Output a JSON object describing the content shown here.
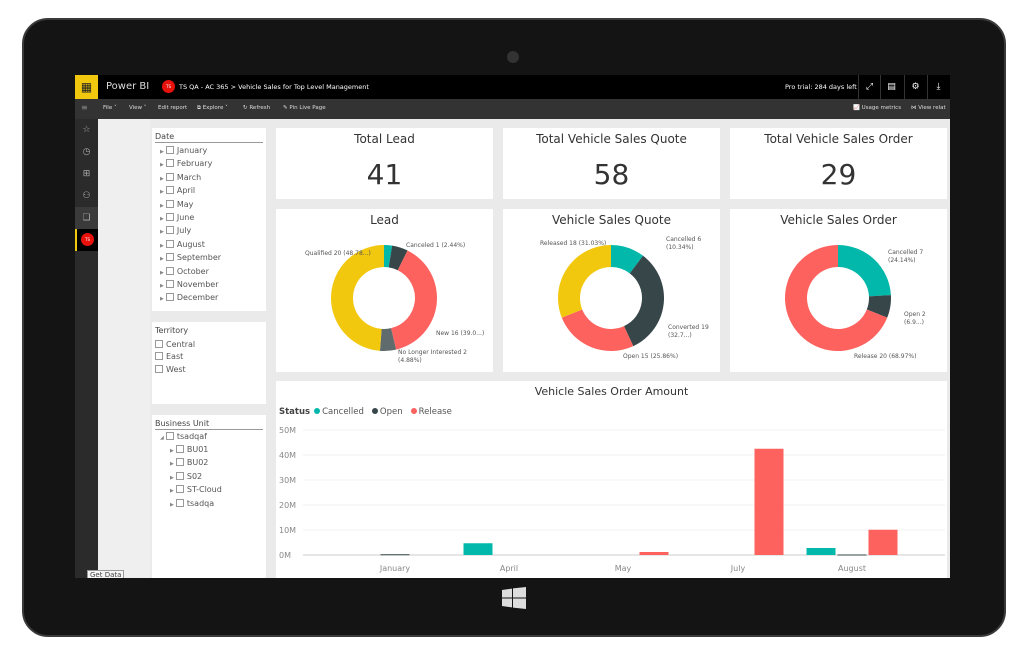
{
  "app": {
    "brand": "Power BI",
    "workspace_avatar": "TS",
    "workspace": "TS QA - AC 365",
    "separator": ">",
    "report": "Vehicle Sales for Top Level Management",
    "trial": "Pro trial: 284 days left"
  },
  "toolbar": {
    "file": "File ˅",
    "view": "View ˅",
    "edit": "Edit report",
    "explore": "Explore ˅",
    "refresh": "Refresh",
    "pin": "Pin Live Page",
    "usage": "Usage metrics",
    "related": "View relat"
  },
  "tooltip": "Get Data",
  "slicers": {
    "date": {
      "title": "Date",
      "items": [
        "January",
        "February",
        "March",
        "April",
        "May",
        "June",
        "July",
        "August",
        "September",
        "October",
        "November",
        "December"
      ]
    },
    "territory": {
      "title": "Territory",
      "items": [
        "Central",
        "East",
        "West"
      ]
    },
    "business_unit": {
      "title": "Business Unit",
      "root": "tsadqaf",
      "items": [
        "BU01",
        "BU02",
        "S02",
        "ST-Cloud",
        "tsadqa"
      ]
    }
  },
  "kpis": [
    {
      "title": "Total Lead",
      "value": "41"
    },
    {
      "title": "Total Vehicle Sales Quote",
      "value": "58"
    },
    {
      "title": "Total Vehicle Sales Order",
      "value": "29"
    }
  ],
  "colors": {
    "teal": "#01B8AA",
    "dark": "#374649",
    "red": "#FD625E",
    "yellow": "#F2C80F",
    "gray": "#5F6B6D"
  },
  "chart_data": [
    {
      "type": "pie",
      "title": "Lead",
      "donut": true,
      "slices": [
        {
          "label": "Canceled 1 (2.44%)",
          "value": 1,
          "color": "#01B8AA"
        },
        {
          "label": "",
          "value": 2,
          "color": "#374649"
        },
        {
          "label": "New 16 (39.0...)",
          "value": 16,
          "color": "#FD625E"
        },
        {
          "label": "No Longer Interested 2 (4.88%)",
          "value": 2,
          "color": "#5F6B6D"
        },
        {
          "label": "Qualified 20 (48.78...)",
          "value": 20,
          "color": "#F2C80F"
        }
      ]
    },
    {
      "type": "pie",
      "title": "Vehicle Sales Quote",
      "donut": true,
      "slices": [
        {
          "label": "Cancelled 6 (10.34%)",
          "value": 6,
          "color": "#01B8AA"
        },
        {
          "label": "Converted 19 (32.7...)",
          "value": 19,
          "color": "#374649"
        },
        {
          "label": "Open 15 (25.86%)",
          "value": 15,
          "color": "#FD625E"
        },
        {
          "label": "Released 18 (31.03%)",
          "value": 18,
          "color": "#F2C80F"
        }
      ]
    },
    {
      "type": "pie",
      "title": "Vehicle Sales Order",
      "donut": true,
      "slices": [
        {
          "label": "Cancelled 7 (24.14%)",
          "value": 7,
          "color": "#01B8AA"
        },
        {
          "label": "Open 2 (6.9...)",
          "value": 2,
          "color": "#374649"
        },
        {
          "label": "Release 20 (68.97%)",
          "value": 20,
          "color": "#FD625E"
        }
      ]
    },
    {
      "type": "bar",
      "title": "Vehicle Sales Order Amount",
      "legend_title": "Status",
      "legend": "top-left",
      "grid": true,
      "categories": [
        "January",
        "April",
        "May",
        "July",
        "August"
      ],
      "yticks": [
        "0M",
        "10M",
        "20M",
        "30M",
        "40M",
        "50M"
      ],
      "ylim": [
        0,
        50
      ],
      "unit": "M",
      "series": [
        {
          "name": "Cancelled",
          "color": "#01B8AA",
          "values": [
            0,
            4.7,
            0,
            0,
            2.8
          ]
        },
        {
          "name": "Open",
          "color": "#374649",
          "values": [
            0.3,
            0,
            0,
            0,
            0.2
          ]
        },
        {
          "name": "Release",
          "color": "#FD625E",
          "values": [
            0,
            0,
            1.2,
            42.5,
            10.1
          ]
        }
      ]
    }
  ]
}
